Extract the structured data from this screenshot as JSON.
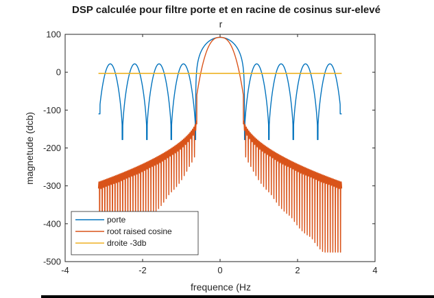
{
  "chart_data": {
    "type": "line",
    "title": "DSP calculée pour filtre porte et en racine de cosinus sur-elevé",
    "subtitle": "r",
    "xlabel": "frequence (Hz",
    "ylabel": "magnetude (dcb)",
    "xlim": [
      -4,
      4
    ],
    "ylim": [
      -500,
      100
    ],
    "xticks": [
      -4,
      -2,
      0,
      2,
      4
    ],
    "yticks": [
      100,
      0,
      -100,
      -200,
      -300,
      -400,
      -500
    ],
    "grid": false,
    "legend": "bottom-left",
    "series": [
      {
        "name": "porte",
        "color": "#0072BD",
        "model": "rect-sinc",
        "x_range": [
          -3.14,
          3.14
        ],
        "main_lobe_peak": 92,
        "null_spacing": 0.63,
        "null_depths": [
          -172,
          -180,
          -182,
          -185,
          -175,
          -175,
          -185,
          -182,
          -180,
          -172
        ],
        "endpoint_value": -110
      },
      {
        "name": "root raised cosine",
        "color": "#D95319",
        "model": "rrc",
        "x_range": [
          -3.14,
          3.14
        ],
        "main_lobe_peak": 92,
        "sidelobe_near_center": -120,
        "sidelobe_at_edge": -290,
        "min_dip": -475
      },
      {
        "name": "droite -3db",
        "color": "#EDB120",
        "model": "constant",
        "x": [
          -3.14,
          3.14
        ],
        "y": [
          -3,
          -3
        ]
      }
    ]
  }
}
